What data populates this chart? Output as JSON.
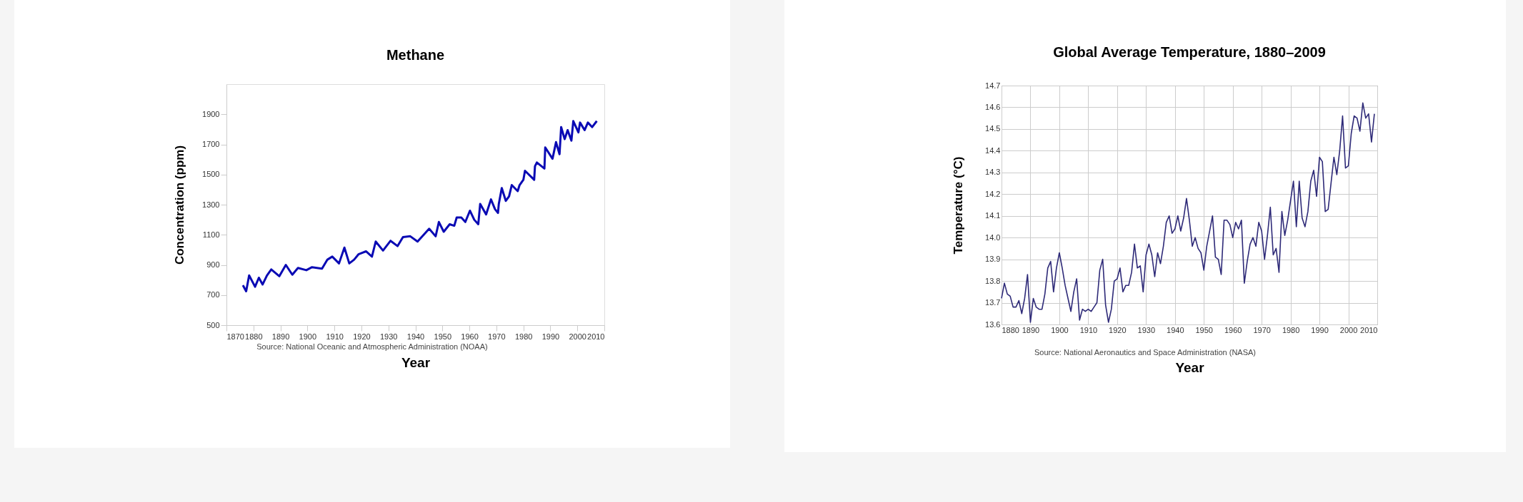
{
  "chart_data": [
    {
      "type": "line",
      "title": "Methane",
      "xlabel": "Year",
      "ylabel": "Concentration (ppm)",
      "annotations": [
        "Source: National Oceanic and Atmospheric Administration (NOAA)"
      ],
      "x": [
        1876.1,
        1877.3,
        1878.4,
        1880.6,
        1882,
        1883.4,
        1885,
        1886.6,
        1889.6,
        1892,
        1894.4,
        1896.5,
        1899.6,
        1901.7,
        1905.4,
        1907.4,
        1909.2,
        1911.7,
        1913.7,
        1915.5,
        1917.3,
        1918.9,
        1921.7,
        1923.9,
        1925.3,
        1928,
        1930.8,
        1933.4,
        1935.4,
        1938.1,
        1940.8,
        1945.1,
        1947.5,
        1948.7,
        1950.5,
        1952.7,
        1954.4,
        1955.3,
        1957,
        1958.5,
        1960.2,
        1961.8,
        1963.3,
        1964,
        1966.2,
        1968,
        1969.5,
        1970.6,
        1970.9,
        1972,
        1973.5,
        1974.7,
        1975.7,
        1977.9,
        1978.6,
        1980,
        1980.6,
        1984,
        1984.3,
        1985,
        1987.8,
        1988.1,
        1990.8,
        1992.1,
        1993.4,
        1994,
        1995.3,
        1996.4,
        1997.8,
        1998.5,
        2000.4,
        2001,
        2002.7,
        2003.9,
        2005.5,
        2007.2
      ],
      "series": [
        {
          "color": "#0a0ab4",
          "values": [
            765,
            725,
            830,
            755,
            815,
            770,
            830,
            870,
            825,
            900,
            835,
            880,
            865,
            885,
            875,
            935,
            955,
            910,
            1015,
            910,
            935,
            970,
            990,
            955,
            1055,
            995,
            1060,
            1025,
            1085,
            1090,
            1055,
            1140,
            1090,
            1185,
            1120,
            1170,
            1160,
            1215,
            1215,
            1185,
            1260,
            1200,
            1170,
            1305,
            1235,
            1335,
            1270,
            1245,
            1305,
            1410,
            1325,
            1355,
            1430,
            1390,
            1430,
            1465,
            1525,
            1465,
            1555,
            1580,
            1540,
            1680,
            1605,
            1715,
            1635,
            1815,
            1735,
            1795,
            1725,
            1855,
            1780,
            1845,
            1795,
            1845,
            1815,
            1855
          ]
        }
      ],
      "xlim": [
        1870,
        2010
      ],
      "xticks": [
        1870,
        1880,
        1890,
        1900,
        1910,
        1920,
        1930,
        1940,
        1950,
        1960,
        1970,
        1980,
        1990,
        2000,
        2010
      ],
      "ylim": [
        500,
        2100
      ],
      "yticks": [
        500,
        700,
        900,
        1100,
        1300,
        1500,
        1700,
        1900
      ]
    },
    {
      "type": "line",
      "title": "Global Average Temperature, 1880–2009",
      "xlabel": "Year",
      "ylabel": "Temperature (°C)",
      "annotations": [
        "Source: National Aeronautics and Space Administration (NASA)"
      ],
      "x": [
        1880,
        1881,
        1882,
        1883,
        1884,
        1885,
        1886,
        1887,
        1888,
        1889,
        1890,
        1891,
        1892,
        1893,
        1894,
        1895,
        1896,
        1897,
        1898,
        1899,
        1900,
        1901,
        1902,
        1903,
        1904,
        1905,
        1906,
        1907,
        1908,
        1909,
        1910,
        1911,
        1912,
        1913,
        1914,
        1915,
        1916,
        1917,
        1918,
        1919,
        1920,
        1921,
        1922,
        1923,
        1924,
        1925,
        1926,
        1927,
        1928,
        1929,
        1930,
        1931,
        1932,
        1933,
        1934,
        1935,
        1936,
        1937,
        1938,
        1939,
        1940,
        1941,
        1942,
        1943,
        1944,
        1945,
        1946,
        1947,
        1948,
        1949,
        1950,
        1951,
        1952,
        1953,
        1954,
        1955,
        1956,
        1957,
        1958,
        1959,
        1960,
        1961,
        1962,
        1963,
        1964,
        1965,
        1966,
        1967,
        1968,
        1969,
        1970,
        1971,
        1972,
        1973,
        1974,
        1975,
        1976,
        1977,
        1978,
        1979,
        1980,
        1981,
        1982,
        1983,
        1984,
        1985,
        1986,
        1987,
        1988,
        1989,
        1990,
        1991,
        1992,
        1993,
        1994,
        1995,
        1996,
        1997,
        1998,
        1999,
        2000,
        2001,
        2002,
        2003,
        2004,
        2005,
        2006,
        2007,
        2008,
        2009
      ],
      "series": [
        {
          "color": "#2e2a78",
          "values": [
            13.72,
            13.79,
            13.74,
            13.73,
            13.68,
            13.68,
            13.71,
            13.65,
            13.72,
            13.83,
            13.61,
            13.72,
            13.68,
            13.67,
            13.67,
            13.74,
            13.86,
            13.89,
            13.75,
            13.86,
            13.93,
            13.86,
            13.78,
            13.72,
            13.66,
            13.75,
            13.81,
            13.62,
            13.67,
            13.66,
            13.67,
            13.66,
            13.68,
            13.7,
            13.85,
            13.9,
            13.69,
            13.61,
            13.67,
            13.8,
            13.81,
            13.86,
            13.75,
            13.78,
            13.78,
            13.84,
            13.97,
            13.86,
            13.87,
            13.75,
            13.92,
            13.97,
            13.92,
            13.82,
            13.93,
            13.88,
            13.96,
            14.07,
            14.1,
            14.02,
            14.04,
            14.1,
            14.03,
            14.09,
            14.18,
            14.08,
            13.96,
            14,
            13.95,
            13.93,
            13.85,
            13.96,
            14.03,
            14.1,
            13.91,
            13.9,
            13.83,
            14.08,
            14.08,
            14.06,
            14,
            14.07,
            14.04,
            14.08,
            13.79,
            13.89,
            13.97,
            14,
            13.96,
            14.07,
            14.03,
            13.9,
            14.01,
            14.14,
            13.92,
            13.95,
            13.84,
            14.12,
            14.01,
            14.08,
            14.17,
            14.26,
            14.05,
            14.26,
            14.09,
            14.05,
            14.12,
            14.26,
            14.31,
            14.19,
            14.37,
            14.35,
            14.12,
            14.13,
            14.25,
            14.37,
            14.29,
            14.4,
            14.56,
            14.32,
            14.33,
            14.48,
            14.56,
            14.55,
            14.49,
            14.62,
            14.55,
            14.57,
            14.44,
            14.57
          ]
        }
      ],
      "xlim": [
        1880,
        2010
      ],
      "xticks": [
        1880,
        1890,
        1900,
        1910,
        1920,
        1930,
        1940,
        1950,
        1960,
        1970,
        1980,
        1990,
        2000,
        2010
      ],
      "ylim": [
        13.6,
        14.7
      ],
      "yticks": [
        13.6,
        13.7,
        13.8,
        13.9,
        {
          "value": 14,
          "label": "14.0"
        },
        14.1,
        14.2,
        14.3,
        14.4,
        14.5,
        14.6,
        14.7
      ],
      "grid": true
    }
  ]
}
